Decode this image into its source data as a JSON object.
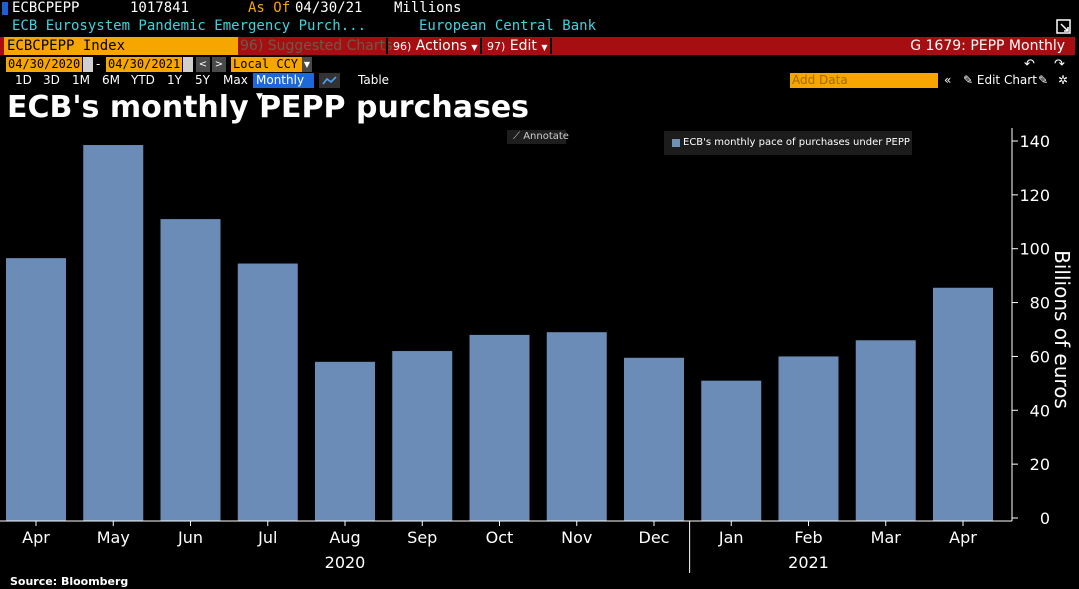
{
  "header": {
    "ticker": "ECBCPEPP",
    "value": "1017841",
    "as_of_label": "As Of",
    "as_of_date": "04/30/21",
    "units": "Millions",
    "description": "ECB Eurosystem Pandemic Emergency Purch...",
    "source_name": "European Central Bank"
  },
  "toolbar": {
    "security": "ECBCPEPP Index",
    "suggested_num": "96)",
    "suggested": "Suggested Charts",
    "actions_num": "96)",
    "actions": "Actions",
    "edit_num": "97)",
    "edit": "Edit",
    "chart_id": "G 1679: PEPP Monthly"
  },
  "range": {
    "start": "04/30/2020",
    "dash": "-",
    "end": "04/30/2021",
    "currency": "Local CCY"
  },
  "periods": [
    "1D",
    "3D",
    "1M",
    "6M",
    "YTD",
    "1Y",
    "5Y",
    "Max"
  ],
  "frequency": "Monthly",
  "table_label": "Table",
  "add_data_placeholder": "Add Data",
  "edit_chart_label": "Edit Chart",
  "annotate_label": "Annotate",
  "source": "Source: Bloomberg",
  "colors": {
    "bar": "#6a8cb6",
    "toolbar": "#a50f12",
    "accent": "#f7a600",
    "selected": "#1d69d8"
  },
  "chart_data": {
    "type": "bar",
    "title": "ECB's monthly PEPP purchases",
    "categories": [
      "Apr",
      "May",
      "Jun",
      "Jul",
      "Aug",
      "Sep",
      "Oct",
      "Nov",
      "Dec",
      "Jan",
      "Feb",
      "Mar",
      "Apr"
    ],
    "year_labels": [
      {
        "label": "2020",
        "category_index": 4
      },
      {
        "label": "2021",
        "category_index": 10
      }
    ],
    "series": [
      {
        "name": "ECB's monthly pace of purchases under PEPP",
        "values": [
          96.5,
          138.5,
          111,
          94.5,
          58,
          62,
          68,
          69,
          59.5,
          51,
          60,
          66,
          85.5
        ]
      }
    ],
    "ylabel": "Billions of euros",
    "ylim": [
      0,
      140
    ],
    "yticks": [
      0,
      20,
      40,
      60,
      80,
      100,
      120,
      140
    ],
    "grid": false,
    "legend_position": "top"
  }
}
